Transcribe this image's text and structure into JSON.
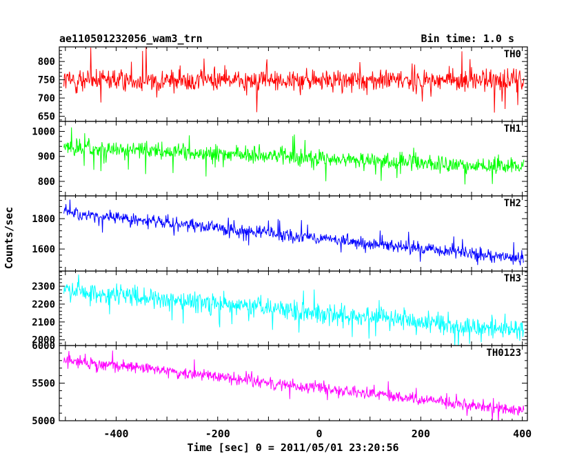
{
  "header": {
    "title": "ae110501232056_wam3_trn",
    "bin_time": "Bin time: 1.0 s"
  },
  "chart_data": {
    "type": "line",
    "xlabel": "Time [sec] 0 = 2011/05/01 23:20:56",
    "ylabel": "Counts/sec",
    "xlim": [
      -512,
      410
    ],
    "x_ticks": [
      -400,
      -200,
      0,
      200,
      400
    ],
    "x_range_data": [
      -503,
      403
    ],
    "panels": [
      {
        "name": "TH0",
        "color": "#ff0000",
        "ylim": [
          636,
          840
        ],
        "y_ticks": [
          650,
          700,
          750,
          800
        ],
        "trend": [
          [
            -503,
            748
          ],
          [
            403,
            748
          ]
        ],
        "noise": 28,
        "spike": 95
      },
      {
        "name": "TH1",
        "color": "#00ff00",
        "ylim": [
          742,
          1040
        ],
        "y_ticks": [
          800,
          900,
          1000
        ],
        "trend": [
          [
            -503,
            935
          ],
          [
            403,
            855
          ]
        ],
        "noise": 30,
        "spike": 95
      },
      {
        "name": "TH2",
        "color": "#0000ff",
        "ylim": [
          1455,
          1950
        ],
        "y_ticks": [
          1600,
          1800
        ],
        "trend": [
          [
            -503,
            1840
          ],
          [
            403,
            1535
          ]
        ],
        "noise": 38,
        "spike": 110
      },
      {
        "name": "TH3",
        "color": "#00ffff",
        "ylim": [
          1968,
          2385
        ],
        "y_ticks": [
          2000,
          2100,
          2200,
          2300
        ],
        "trend": [
          [
            -503,
            2275
          ],
          [
            403,
            2050
          ]
        ],
        "noise": 48,
        "spike": 130
      },
      {
        "name": "TH0123",
        "color": "#ff00ff",
        "ylim": [
          5000,
          6000
        ],
        "y_ticks": [
          5000,
          5500,
          6000
        ],
        "trend": [
          [
            -503,
            5810
          ],
          [
            403,
            5130
          ]
        ],
        "noise": 70,
        "spike": 200
      }
    ]
  }
}
